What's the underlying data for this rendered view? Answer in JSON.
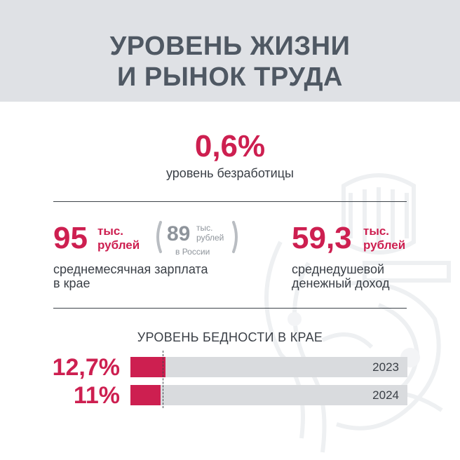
{
  "header": {
    "title_line1": "УРОВЕНЬ ЖИЗНИ",
    "title_line2": "И РЫНОК ТРУДА"
  },
  "colors": {
    "accent": "#cd1f50",
    "header_bg": "#dfe1e5",
    "header_text": "#4f5863",
    "muted": "#8e949b",
    "track": "#d9dbde"
  },
  "unemployment": {
    "value": "0,6%",
    "caption": "уровень безработицы"
  },
  "salary": {
    "value": "95",
    "unit_line1": "тыс.",
    "unit_line2": "рублей",
    "russia_value": "89",
    "russia_unit_line1": "тыс.",
    "russia_unit_line2": "рублей",
    "russia_caption": "в России",
    "caption_line1": "среднемесячная зарплата",
    "caption_line2": "в крае"
  },
  "income": {
    "value": "59,3",
    "unit_line1": "тыс.",
    "unit_line2": "рублей",
    "caption_line1": "среднедушевой",
    "caption_line2": "денежный доход"
  },
  "poverty": {
    "title": "УРОВЕНЬ БЕДНОСТИ В КРАЕ",
    "rows": [
      {
        "pct_label": "12,7%",
        "year": "2023",
        "value": 12.7
      },
      {
        "pct_label": "11%",
        "year": "2024",
        "value": 11
      }
    ]
  },
  "background_emblem": "coat-of-arms-watermark"
}
